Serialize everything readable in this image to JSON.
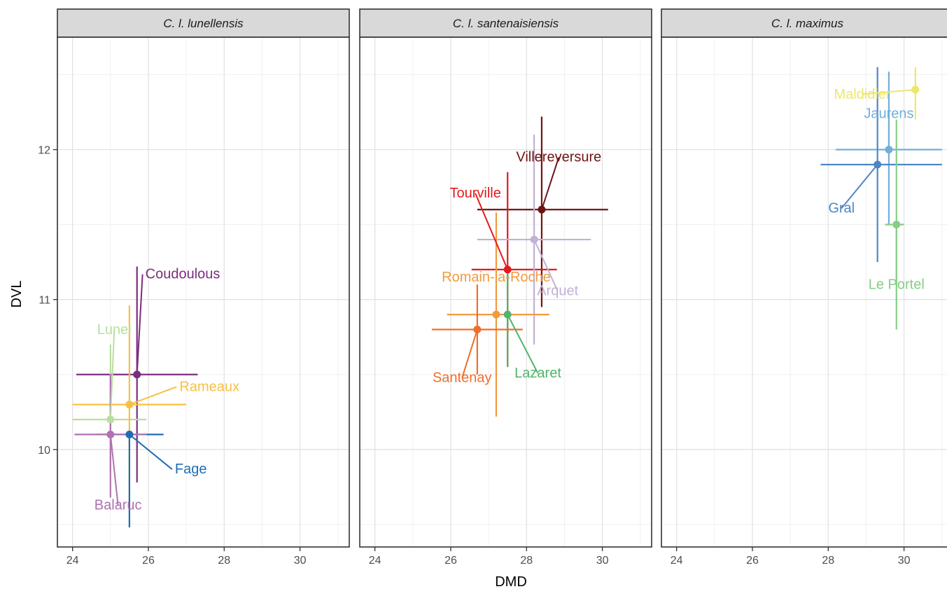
{
  "chart_data": {
    "type": "scatter",
    "xlabel": "DMD",
    "ylabel": "DVL",
    "xlim": [
      23.6,
      31.3
    ],
    "ylim": [
      9.35,
      12.75
    ],
    "x_ticks": [
      24,
      26,
      28,
      30
    ],
    "x_tick_labels": [
      "24",
      "26",
      "28",
      "30"
    ],
    "y_ticks": [
      10,
      11,
      12
    ],
    "y_tick_labels": [
      "10",
      "11",
      "12"
    ],
    "grid": true,
    "panels": [
      {
        "title": "C. l. lunellensis",
        "points": [
          {
            "name": "Coudoulous",
            "x": 25.7,
            "y": 10.5,
            "xmin": 24.1,
            "xmax": 27.3,
            "ymin": 9.78,
            "ymax": 11.22,
            "color": "#7b2d7e",
            "label_x": 25.92,
            "label_y": 11.14,
            "anchor": "start"
          },
          {
            "name": "Lunel",
            "x": 25.0,
            "y": 10.2,
            "xmin": 24.0,
            "xmax": 25.95,
            "ymin": 9.85,
            "ymax": 10.7,
            "color": "#b9dea0",
            "label_x": 25.1,
            "label_y": 10.77,
            "anchor": "middle"
          },
          {
            "name": "Rameaux",
            "x": 25.5,
            "y": 10.3,
            "xmin": 24.0,
            "xmax": 27.0,
            "ymin": 9.65,
            "ymax": 10.96,
            "color": "#f6c143",
            "label_x": 26.82,
            "label_y": 10.39,
            "anchor": "start"
          },
          {
            "name": "Fage",
            "x": 25.5,
            "y": 10.1,
            "xmin": 24.6,
            "xmax": 26.4,
            "ymin": 9.48,
            "ymax": 10.1,
            "color": "#1f6db3",
            "label_x": 26.7,
            "label_y": 9.84,
            "anchor": "start"
          },
          {
            "name": "Balaruc",
            "x": 25.0,
            "y": 10.1,
            "xmin": 24.05,
            "xmax": 25.95,
            "ymin": 9.68,
            "ymax": 10.5,
            "color": "#b072b0",
            "label_x": 25.2,
            "label_y": 9.6,
            "anchor": "middle"
          }
        ]
      },
      {
        "title": "C. l. santenaisiensis",
        "points": [
          {
            "name": "Villereversure",
            "x": 28.4,
            "y": 11.6,
            "xmin": 26.7,
            "xmax": 30.15,
            "ymin": 10.95,
            "ymax": 12.22,
            "color": "#6e1413",
            "label_x": 28.85,
            "label_y": 11.92,
            "anchor": "middle"
          },
          {
            "name": "Tourville",
            "x": 27.5,
            "y": 11.2,
            "xmin": 26.55,
            "xmax": 28.8,
            "ymin": 10.55,
            "ymax": 11.85,
            "color": "#e31a1c",
            "label_x": 26.65,
            "label_y": 11.68,
            "anchor": "middle"
          },
          {
            "name": "Arquet",
            "x": 28.2,
            "y": 11.4,
            "xmin": 26.7,
            "xmax": 29.7,
            "ymin": 10.7,
            "ymax": 12.1,
            "color": "#c4b1d6",
            "label_x": 28.82,
            "label_y": 11.03,
            "anchor": "middle"
          },
          {
            "name": "Romain-la-Roche",
            "x": 27.2,
            "y": 10.9,
            "xmin": 25.9,
            "xmax": 28.6,
            "ymin": 10.22,
            "ymax": 11.58,
            "color": "#f29a3f",
            "label_x": 27.2,
            "label_y": 11.12,
            "anchor": "middle"
          },
          {
            "name": "Lazaret",
            "x": 27.5,
            "y": 10.9,
            "xmin": 27.5,
            "xmax": 27.5,
            "ymin": 10.55,
            "ymax": 11.2,
            "color": "#4fb56b",
            "label_x": 28.3,
            "label_y": 10.48,
            "anchor": "middle"
          },
          {
            "name": "Santenay",
            "x": 26.7,
            "y": 10.8,
            "xmin": 25.5,
            "xmax": 27.9,
            "ymin": 10.5,
            "ymax": 11.1,
            "color": "#ef6f28",
            "label_x": 26.3,
            "label_y": 10.45,
            "anchor": "middle"
          }
        ]
      },
      {
        "title": "C. l. maximus",
        "points": [
          {
            "name": "Maldidier",
            "x": 30.3,
            "y": 12.4,
            "xmin": 30.3,
            "xmax": 30.3,
            "ymin": 12.2,
            "ymax": 12.55,
            "color": "#ece76c",
            "label_x": 28.9,
            "label_y": 12.34,
            "anchor": "middle"
          },
          {
            "name": "Jaurens",
            "x": 29.6,
            "y": 12.0,
            "xmin": 28.2,
            "xmax": 31.0,
            "ymin": 11.5,
            "ymax": 12.52,
            "color": "#73aedb",
            "label_x": 29.6,
            "label_y": 12.21,
            "anchor": "middle"
          },
          {
            "name": "Gral",
            "x": 29.3,
            "y": 11.9,
            "xmin": 27.8,
            "xmax": 31.0,
            "ymin": 11.25,
            "ymax": 12.55,
            "color": "#4e86c5",
            "label_x": 28.35,
            "label_y": 11.58,
            "anchor": "middle"
          },
          {
            "name": "Le Portel",
            "x": 29.8,
            "y": 11.5,
            "xmin": 29.5,
            "xmax": 30.0,
            "ymin": 10.8,
            "ymax": 12.2,
            "color": "#86cd86",
            "label_x": 29.8,
            "label_y": 11.07,
            "anchor": "middle"
          }
        ]
      }
    ]
  }
}
